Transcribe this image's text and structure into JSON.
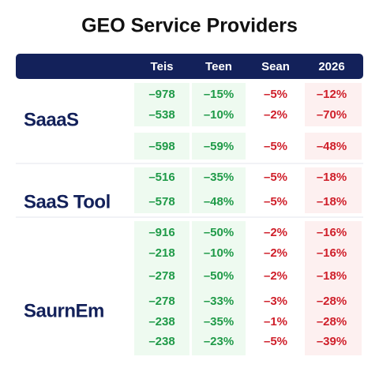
{
  "header": {
    "title": "GEO Service Providers"
  },
  "table": {
    "columns": [
      "Teis",
      "Teen",
      "Sean",
      "2026"
    ],
    "groups": [
      {
        "name": "SaaaS",
        "rows": [
          [
            "–978",
            "–15%",
            "–5%",
            "–12%"
          ],
          [
            "–538",
            "–10%",
            "–2%",
            "–70%"
          ],
          [
            "–598",
            "–59%",
            "–5%",
            "–48%"
          ]
        ]
      },
      {
        "name": "SaaS Tool",
        "rows": [
          [
            "–516",
            "–35%",
            "–5%",
            "–18%"
          ],
          [
            "–578",
            "–48%",
            "–5%",
            "–18%"
          ]
        ]
      },
      {
        "name": "SaurnEm",
        "rows": [
          [
            "–916",
            "–50%",
            "–2%",
            "–16%"
          ],
          [
            "–218",
            "–10%",
            "–2%",
            "–16%"
          ],
          [
            "–278",
            "–50%",
            "–2%",
            "–18%"
          ],
          [
            "–278",
            "–33%",
            "–3%",
            "–28%"
          ],
          [
            "–238",
            "–35%",
            "–1%",
            "–28%"
          ],
          [
            "–238",
            "–23%",
            "–5%",
            "–39%"
          ]
        ]
      }
    ]
  }
}
